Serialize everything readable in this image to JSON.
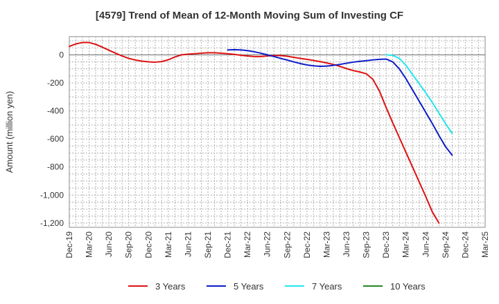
{
  "chart_data": {
    "type": "line",
    "title": "[4579]  Trend of Mean of 12-Month Moving Sum of Investing CF",
    "xlabel": "",
    "ylabel": "Amount (million yen)",
    "ylim": [
      -1230,
      130
    ],
    "y_ticks": [
      0,
      -200,
      -400,
      -600,
      -800,
      -1000,
      -1200
    ],
    "y_tick_labels": [
      "0",
      "-200",
      "-400",
      "-600",
      "-800",
      "-1,000",
      "-1,200"
    ],
    "x_tick_labels": [
      "Dec-19",
      "Mar-20",
      "Jun-20",
      "Sep-20",
      "Dec-20",
      "Mar-21",
      "Jun-21",
      "Sep-21",
      "Dec-21",
      "Mar-22",
      "Jun-22",
      "Sep-22",
      "Dec-22",
      "Mar-23",
      "Jun-23",
      "Sep-23",
      "Dec-23",
      "Mar-24",
      "Jun-24",
      "Sep-24",
      "Dec-24",
      "Mar-25"
    ],
    "grid": true,
    "legend_position": "bottom",
    "series": [
      {
        "name": "3 Years",
        "color": "#dd1111",
        "points": [
          [
            0,
            60
          ],
          [
            1,
            78
          ],
          [
            2,
            88
          ],
          [
            3,
            88
          ],
          [
            4,
            75
          ],
          [
            5,
            55
          ],
          [
            6,
            33
          ],
          [
            7,
            12
          ],
          [
            8,
            -8
          ],
          [
            9,
            -25
          ],
          [
            10,
            -37
          ],
          [
            11,
            -45
          ],
          [
            12,
            -50
          ],
          [
            13,
            -52
          ],
          [
            14,
            -48
          ],
          [
            15,
            -35
          ],
          [
            16,
            -15
          ],
          [
            17,
            0
          ],
          [
            18,
            5
          ],
          [
            19,
            8
          ],
          [
            20,
            12
          ],
          [
            21,
            15
          ],
          [
            22,
            15
          ],
          [
            23,
            12
          ],
          [
            24,
            8
          ],
          [
            25,
            3
          ],
          [
            26,
            -3
          ],
          [
            27,
            -8
          ],
          [
            28,
            -12
          ],
          [
            29,
            -12
          ],
          [
            30,
            -8
          ],
          [
            31,
            -5
          ],
          [
            32,
            -5
          ],
          [
            33,
            -10
          ],
          [
            34,
            -18
          ],
          [
            35,
            -25
          ],
          [
            36,
            -32
          ],
          [
            37,
            -40
          ],
          [
            38,
            -48
          ],
          [
            39,
            -58
          ],
          [
            40,
            -68
          ],
          [
            41,
            -82
          ],
          [
            42,
            -98
          ],
          [
            43,
            -112
          ],
          [
            44,
            -122
          ],
          [
            45,
            -135
          ],
          [
            46,
            -175
          ],
          [
            47,
            -260
          ],
          [
            48,
            -375
          ],
          [
            49,
            -485
          ],
          [
            50,
            -590
          ],
          [
            51,
            -695
          ],
          [
            52,
            -800
          ],
          [
            53,
            -905
          ],
          [
            54,
            -1010
          ],
          [
            55,
            -1120
          ],
          [
            56,
            -1200
          ]
        ]
      },
      {
        "name": "5 Years",
        "color": "#0c1cc8",
        "points": [
          [
            24,
            35
          ],
          [
            25,
            37
          ],
          [
            26,
            35
          ],
          [
            27,
            30
          ],
          [
            28,
            22
          ],
          [
            29,
            12
          ],
          [
            30,
            0
          ],
          [
            31,
            -12
          ],
          [
            32,
            -25
          ],
          [
            33,
            -37
          ],
          [
            34,
            -50
          ],
          [
            35,
            -62
          ],
          [
            36,
            -72
          ],
          [
            37,
            -78
          ],
          [
            38,
            -82
          ],
          [
            39,
            -80
          ],
          [
            40,
            -75
          ],
          [
            41,
            -68
          ],
          [
            42,
            -60
          ],
          [
            43,
            -52
          ],
          [
            44,
            -46
          ],
          [
            45,
            -42
          ],
          [
            46,
            -36
          ],
          [
            47,
            -32
          ],
          [
            48,
            -30
          ],
          [
            49,
            -50
          ],
          [
            50,
            -100
          ],
          [
            51,
            -170
          ],
          [
            52,
            -250
          ],
          [
            53,
            -330
          ],
          [
            54,
            -410
          ],
          [
            55,
            -490
          ],
          [
            56,
            -575
          ],
          [
            57,
            -655
          ],
          [
            58,
            -715
          ]
        ]
      },
      {
        "name": "7 Years",
        "color": "#22e6ee",
        "points": [
          [
            48,
            0
          ],
          [
            49,
            -4
          ],
          [
            50,
            -25
          ],
          [
            51,
            -75
          ],
          [
            52,
            -140
          ],
          [
            53,
            -205
          ],
          [
            54,
            -270
          ],
          [
            55,
            -340
          ],
          [
            56,
            -415
          ],
          [
            57,
            -490
          ],
          [
            58,
            -560
          ]
        ]
      },
      {
        "name": "10 Years",
        "color": "#228822",
        "points": []
      }
    ]
  }
}
